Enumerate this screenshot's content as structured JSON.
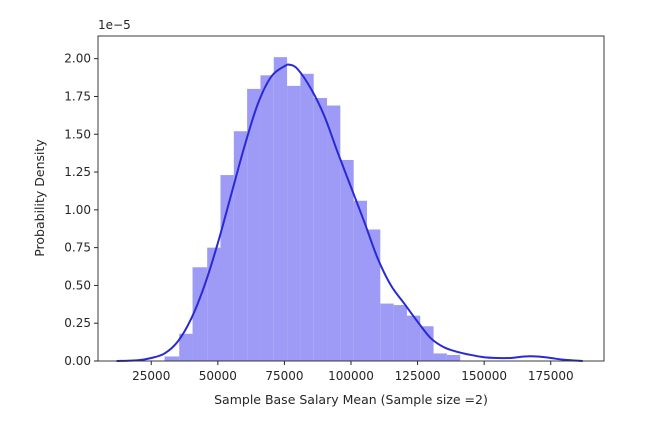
{
  "chart_data": {
    "type": "bar",
    "title": "",
    "xlabel": "Sample Base Salary Mean (Sample size =2)",
    "ylabel": "Probability Density",
    "y_offset_label": "1e−5",
    "xlim": [
      5000,
      195000
    ],
    "ylim": [
      0,
      2.15
    ],
    "x_ticks": [
      25000,
      50000,
      75000,
      100000,
      125000,
      150000,
      175000
    ],
    "y_ticks": [
      0.0,
      0.25,
      0.5,
      0.75,
      1.0,
      1.25,
      1.5,
      1.75,
      2.0
    ],
    "y_tick_labels": [
      "0.00",
      "0.25",
      "0.50",
      "0.75",
      "1.00",
      "1.25",
      "1.50",
      "1.75",
      "2.00"
    ],
    "grid": false,
    "histogram": {
      "name": "histogram",
      "color": "#9d9bf5",
      "bins": [
        {
          "x0": 30000,
          "x1": 35500,
          "y": 0.03
        },
        {
          "x0": 35500,
          "x1": 40500,
          "y": 0.18
        },
        {
          "x0": 40500,
          "x1": 46000,
          "y": 0.62
        },
        {
          "x0": 46000,
          "x1": 51000,
          "y": 0.75
        },
        {
          "x0": 51000,
          "x1": 56000,
          "y": 1.23
        },
        {
          "x0": 56000,
          "x1": 61000,
          "y": 1.52
        },
        {
          "x0": 61000,
          "x1": 66000,
          "y": 1.8
        },
        {
          "x0": 66000,
          "x1": 71000,
          "y": 1.89
        },
        {
          "x0": 71000,
          "x1": 76000,
          "y": 2.01
        },
        {
          "x0": 76000,
          "x1": 81000,
          "y": 1.82
        },
        {
          "x0": 81000,
          "x1": 86000,
          "y": 1.9
        },
        {
          "x0": 86000,
          "x1": 91000,
          "y": 1.74
        },
        {
          "x0": 91000,
          "x1": 96000,
          "y": 1.69
        },
        {
          "x0": 96000,
          "x1": 101000,
          "y": 1.33
        },
        {
          "x0": 101000,
          "x1": 106000,
          "y": 1.06
        },
        {
          "x0": 106000,
          "x1": 111000,
          "y": 0.87
        },
        {
          "x0": 111000,
          "x1": 116000,
          "y": 0.38
        },
        {
          "x0": 116000,
          "x1": 121000,
          "y": 0.37
        },
        {
          "x0": 121000,
          "x1": 126000,
          "y": 0.3
        },
        {
          "x0": 126000,
          "x1": 131000,
          "y": 0.23
        },
        {
          "x0": 131000,
          "x1": 136000,
          "y": 0.05
        },
        {
          "x0": 136000,
          "x1": 141000,
          "y": 0.04
        }
      ]
    },
    "kde": {
      "name": "kde",
      "color": "#2a2ad4",
      "x": [
        12000,
        20000,
        25000,
        30000,
        35000,
        40000,
        45000,
        50000,
        55000,
        60000,
        65000,
        70000,
        75000,
        77000,
        80000,
        85000,
        90000,
        95000,
        100000,
        105000,
        110000,
        115000,
        120000,
        125000,
        130000,
        135000,
        140000,
        145000,
        150000,
        155000,
        160000,
        165000,
        170000,
        175000,
        180000,
        187000
      ],
      "y": [
        0.0,
        0.005,
        0.02,
        0.05,
        0.13,
        0.28,
        0.5,
        0.78,
        1.1,
        1.42,
        1.7,
        1.88,
        1.95,
        1.96,
        1.93,
        1.8,
        1.62,
        1.38,
        1.15,
        0.92,
        0.68,
        0.5,
        0.38,
        0.26,
        0.15,
        0.09,
        0.06,
        0.04,
        0.025,
        0.02,
        0.02,
        0.03,
        0.03,
        0.02,
        0.008,
        0.0
      ]
    }
  }
}
